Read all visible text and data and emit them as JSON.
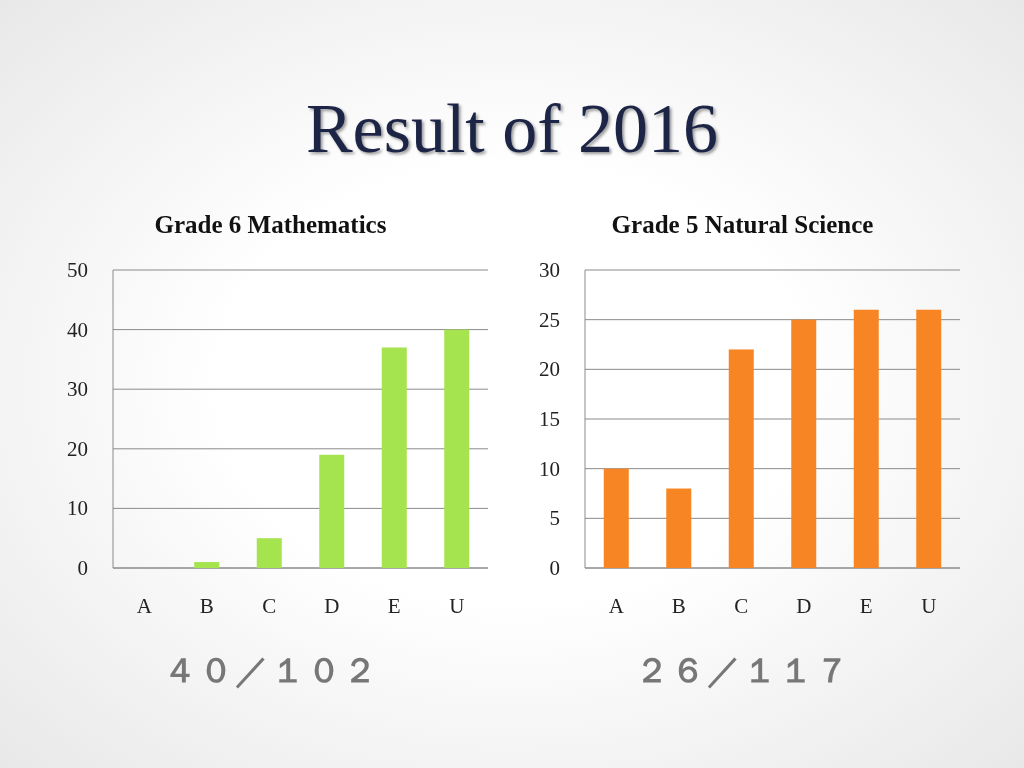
{
  "chart_data": [
    {
      "type": "bar",
      "title": "Grade 6 Mathematics",
      "annotations": [
        "Result of 2016",
        "４０／１０２"
      ],
      "categories": [
        "A",
        "B",
        "C",
        "D",
        "E",
        "U"
      ],
      "series": [
        {
          "color": "#a5e34f",
          "values": [
            0,
            1,
            5,
            19,
            37,
            40
          ]
        }
      ],
      "ylim": [
        0,
        50
      ],
      "yticks": [
        0,
        10,
        20,
        30,
        40,
        50
      ],
      "grid": "y"
    },
    {
      "type": "bar",
      "title": "Grade 5 Natural Science",
      "annotations": [
        "２６／１１７"
      ],
      "categories": [
        "A",
        "B",
        "C",
        "D",
        "E",
        "U"
      ],
      "series": [
        {
          "color": "#f88523",
          "values": [
            10,
            8,
            22,
            25,
            26,
            26
          ]
        }
      ],
      "ylim": [
        0,
        30
      ],
      "yticks": [
        0,
        5,
        10,
        15,
        20,
        25,
        30
      ],
      "grid": "y"
    }
  ]
}
